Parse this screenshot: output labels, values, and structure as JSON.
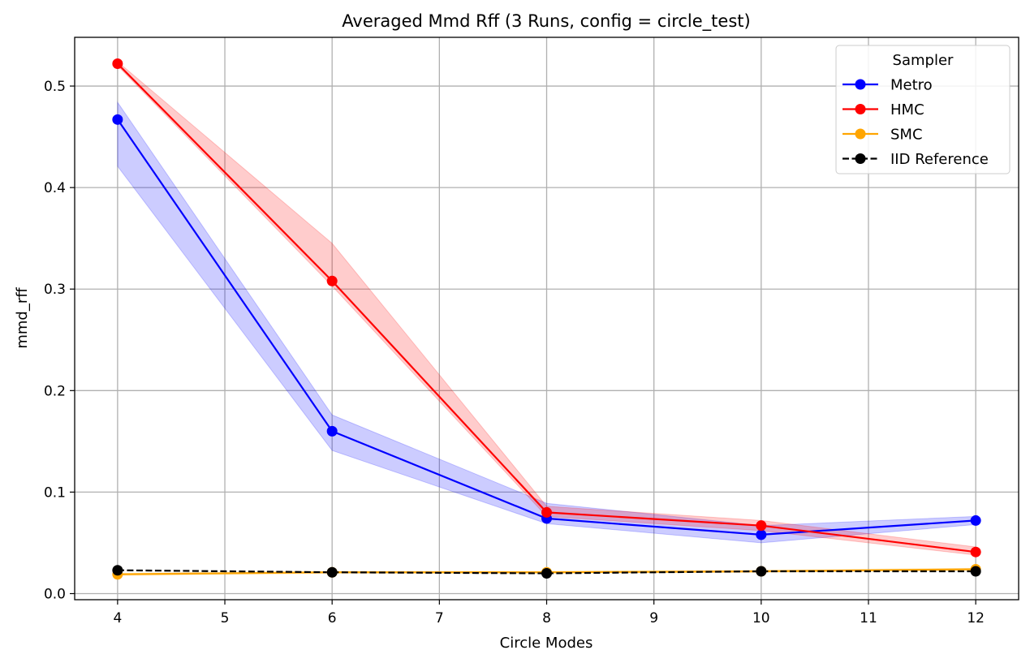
{
  "chart_data": {
    "type": "line",
    "title": "Averaged Mmd Rff (3 Runs, config = circle_test)",
    "xlabel": "Circle Modes",
    "ylabel": "mmd_rff",
    "xlim": [
      3.6,
      12.4
    ],
    "ylim": [
      -0.006,
      0.548
    ],
    "xticks": [
      "4",
      "5",
      "6",
      "7",
      "8",
      "9",
      "10",
      "11",
      "12"
    ],
    "yticks": [
      "0.0",
      "0.1",
      "0.2",
      "0.3",
      "0.4",
      "0.5"
    ],
    "grid": true,
    "legend": {
      "title": "Sampler",
      "position": "top-right"
    },
    "x": [
      4,
      6,
      8,
      10,
      12
    ],
    "series": [
      {
        "name": "Metro",
        "color": "#0000ff",
        "linestyle": "solid",
        "values": [
          0.467,
          0.16,
          0.074,
          0.058,
          0.072
        ],
        "lower": [
          0.421,
          0.141,
          0.069,
          0.05,
          0.068
        ],
        "upper": [
          0.484,
          0.176,
          0.089,
          0.067,
          0.076
        ]
      },
      {
        "name": "HMC",
        "color": "#ff0000",
        "linestyle": "solid",
        "values": [
          0.522,
          0.308,
          0.08,
          0.067,
          0.041
        ],
        "lower": [
          0.52,
          0.303,
          0.076,
          0.062,
          0.038
        ],
        "upper": [
          0.524,
          0.345,
          0.086,
          0.072,
          0.046
        ]
      },
      {
        "name": "SMC",
        "color": "#ffa500",
        "linestyle": "solid",
        "values": [
          0.019,
          0.021,
          0.021,
          0.022,
          0.024
        ],
        "lower": [
          0.018,
          0.02,
          0.02,
          0.021,
          0.023
        ],
        "upper": [
          0.02,
          0.022,
          0.022,
          0.023,
          0.025
        ]
      },
      {
        "name": "IID Reference",
        "color": "#000000",
        "linestyle": "dashed",
        "values": [
          0.023,
          0.021,
          0.02,
          0.022,
          0.022
        ]
      }
    ]
  }
}
